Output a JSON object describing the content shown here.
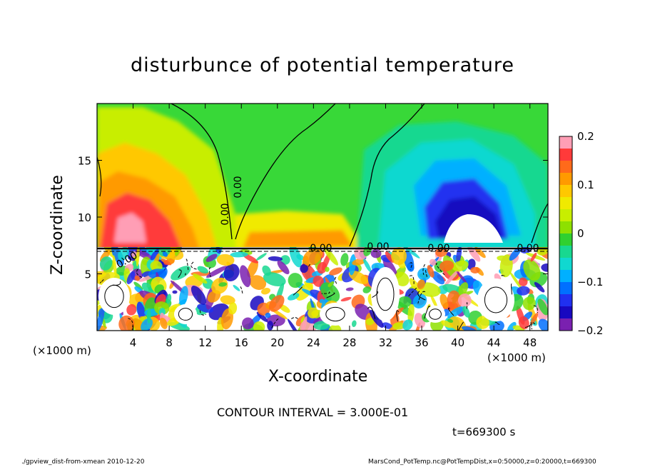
{
  "chart_data": {
    "type": "heatmap",
    "title": "disturbunce of potential temperature",
    "xlabel": "X-coordinate",
    "ylabel": "Z-coordinate",
    "x_unit": "(×1000 m)",
    "x_ticks": [
      4,
      8,
      12,
      16,
      20,
      24,
      28,
      32,
      36,
      40,
      44,
      48
    ],
    "y_ticks": [
      5,
      10,
      15
    ],
    "xlim": [
      0,
      50
    ],
    "ylim": [
      0,
      20
    ],
    "colorbar": {
      "ticks": [
        "0.2",
        "0.1",
        "0",
        "−0.1",
        "−0.2"
      ],
      "range": [
        -0.2,
        0.2
      ],
      "colors": [
        "#ff9eb5",
        "#ff3a3a",
        "#ff6a1a",
        "#ff9a00",
        "#ffc800",
        "#f0ea00",
        "#c8ee00",
        "#8ee000",
        "#30d030",
        "#18d890",
        "#10d8d0",
        "#00b0ff",
        "#0070ff",
        "#2030f0",
        "#1808c0",
        "#7a20b0"
      ]
    },
    "contour_labels": [
      "0.00",
      "0.00",
      "0.00",
      "0.00",
      "0.00",
      "0.00",
      "0.00"
    ],
    "contour_interval": "CONTOUR INTERVAL = 3.000E-01",
    "time": "t=669300 s"
  },
  "footer": {
    "left": "./gpview_dist-from-xmean  2010-12-20",
    "right": "MarsCond_PotTemp.nc@PotTempDist,x=0:50000,z=0:20000,t=669300"
  }
}
